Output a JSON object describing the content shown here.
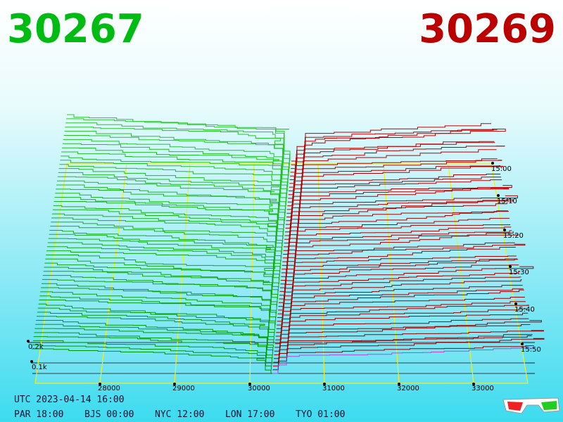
{
  "header": {
    "bid": "30267",
    "ask": "30269"
  },
  "price_axis": {
    "labels": [
      "28000",
      "29000",
      "30000",
      "31000",
      "32000",
      "33000"
    ]
  },
  "depth_axis": {
    "labels": [
      "0.2k",
      "0.1k"
    ]
  },
  "time_axis": {
    "labels": [
      "15:00",
      "15:10",
      "15:20",
      "15:30",
      "15:40",
      "15:50"
    ]
  },
  "footer": {
    "utc": "UTC 2023-04-14 16:00",
    "zones": [
      "PAR 18:00",
      "BJS 00:00",
      "NYC 12:00",
      "LON 17:00",
      "TYO 01:00"
    ]
  }
}
